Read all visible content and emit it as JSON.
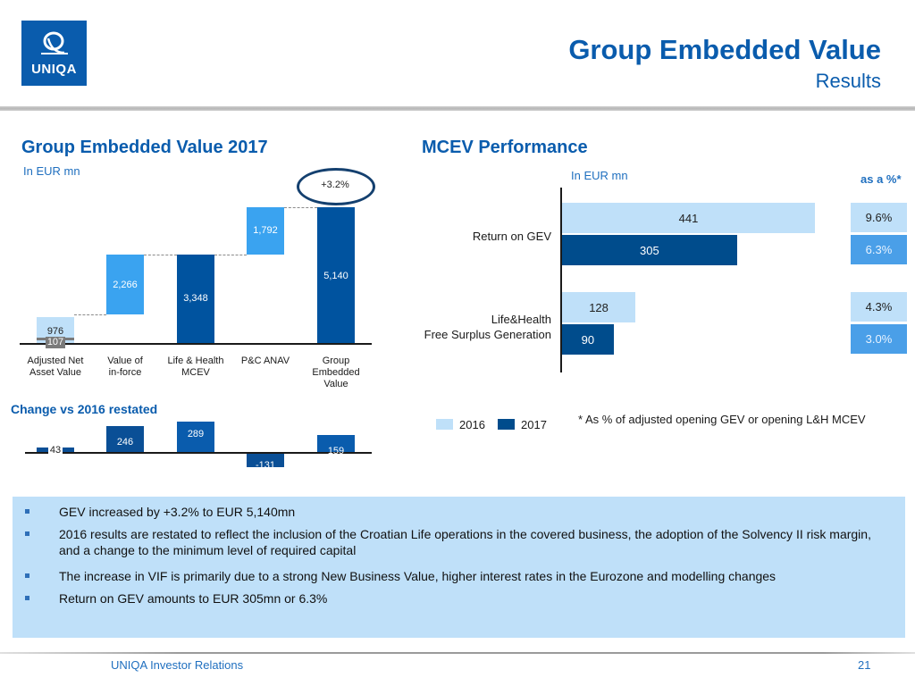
{
  "header": {
    "logo_text": "UNIQA",
    "title": "Group Embedded Value",
    "subtitle": "Results"
  },
  "colors": {
    "brand_blue": "#0a5cad",
    "light_blue": "#bfe0f9",
    "mid_blue": "#3aa3f0",
    "dark_blue": "#00539f",
    "navy": "#004c8c",
    "pct_2017": "#4a9fe8",
    "negative_grey": "#7a7a7a"
  },
  "chart_data": [
    {
      "type": "bar",
      "subtype": "waterfall",
      "title": "Group Embedded Value 2017",
      "unit": "In EUR mn",
      "categories": [
        "Adjusted Net Asset Value",
        "Value of in-force",
        "Life & Health MCEV",
        "P&C ANAV",
        "Group Embedded Value"
      ],
      "category_lines": [
        [
          "Adjusted Net",
          "Asset Value"
        ],
        [
          "Value of",
          "in-force"
        ],
        [
          "Life & Health",
          "MCEV"
        ],
        [
          "P&C ANAV"
        ],
        [
          "Group",
          "Embedded",
          "Value"
        ]
      ],
      "segments": [
        {
          "category": "Adjusted Net Asset Value",
          "value": 976,
          "label": "976",
          "kind": "increase-light"
        },
        {
          "category": "Adjusted Net Asset Value",
          "value": -107,
          "label": "-107",
          "display_label": "107",
          "kind": "negative"
        },
        {
          "category": "Value of in-force",
          "value": 2266,
          "label": "2,266",
          "kind": "increase"
        },
        {
          "category": "Life & Health MCEV",
          "value": 3348,
          "label": "3,348",
          "kind": "total"
        },
        {
          "category": "P&C ANAV",
          "value": 1792,
          "label": "1,792",
          "kind": "increase"
        },
        {
          "category": "Group Embedded Value",
          "value": 5140,
          "label": "5,140",
          "kind": "total"
        }
      ],
      "annotation": "+3.2%",
      "ylim": [
        0,
        5300
      ]
    },
    {
      "type": "bar",
      "title": "Change vs 2016 restated",
      "categories": [
        "Adjusted Net Asset Value",
        "Value of in-force",
        "Life & Health MCEV",
        "P&C ANAV",
        "Group Embedded Value"
      ],
      "values": [
        43,
        246,
        289,
        -131,
        159
      ],
      "labels": [
        "43",
        "246",
        "289",
        "-131",
        "159"
      ],
      "ylim": [
        -150,
        300
      ]
    },
    {
      "type": "bar",
      "orientation": "horizontal",
      "title": "MCEV Performance",
      "unit": "In EUR mn",
      "categories": [
        "Return on GEV",
        "Life&Health Free Surplus Generation"
      ],
      "category_lines": [
        [
          "Return on GEV"
        ],
        [
          "Life&Health",
          "Free Surplus Generation"
        ]
      ],
      "series": [
        {
          "name": "2016",
          "values": [
            441,
            128
          ],
          "pct": [
            "9.6%",
            "4.3%"
          ]
        },
        {
          "name": "2017",
          "values": [
            305,
            90
          ],
          "pct": [
            "6.3%",
            "3.0%"
          ]
        }
      ],
      "pct_header": "as a %*",
      "footnote": "*  As % of adjusted opening GEV or opening L&H MCEV",
      "legend": [
        "2016",
        "2017"
      ],
      "legend_position": "bottom-left",
      "xlim": [
        0,
        460
      ]
    }
  ],
  "summary": {
    "bullets": [
      "GEV increased by +3.2% to EUR 5,140mn",
      "2016 results are restated to reflect the inclusion of the Croatian Life operations in the covered business, the adoption of the Solvency II risk margin, and a change to the minimum level of required capital",
      "The increase in VIF is primarily due to a strong New Business Value, higher interest rates in the Eurozone and modelling changes",
      "Return on GEV amounts to EUR 305mn or 6.3%"
    ]
  },
  "footer": {
    "left": "UNIQA Investor Relations",
    "page": "21"
  }
}
